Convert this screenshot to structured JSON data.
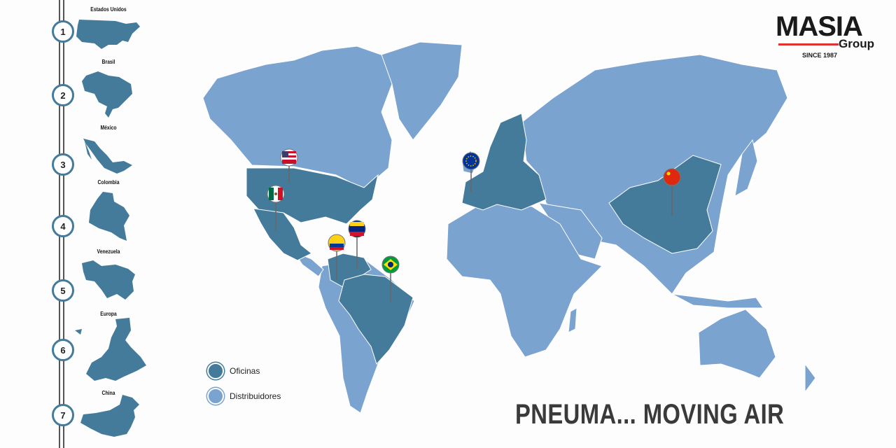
{
  "brand": {
    "name": "MASIA",
    "sub": "Group",
    "since": "SINCE 1987",
    "accent": "#d33333"
  },
  "colors": {
    "oficinas": "#457b9a",
    "distribuidores": "#7ba3cf"
  },
  "sidebar": {
    "items": [
      {
        "number": "1",
        "label": "Estados Unidos"
      },
      {
        "number": "2",
        "label": "Brasil"
      },
      {
        "number": "3",
        "label": "México"
      },
      {
        "number": "4",
        "label": "Colombia"
      },
      {
        "number": "5",
        "label": "Venezuela"
      },
      {
        "number": "6",
        "label": "Europa"
      },
      {
        "number": "7",
        "label": "China"
      }
    ]
  },
  "legend": {
    "oficinas": "Oficinas",
    "distribuidores": "Distribuidores"
  },
  "pins": [
    "USA flag",
    "Mexico flag",
    "Colombia flag",
    "Venezuela flag",
    "Brazil flag",
    "EU flag",
    "China flag"
  ],
  "slogan": "PNEUMA... MOVING AIR"
}
